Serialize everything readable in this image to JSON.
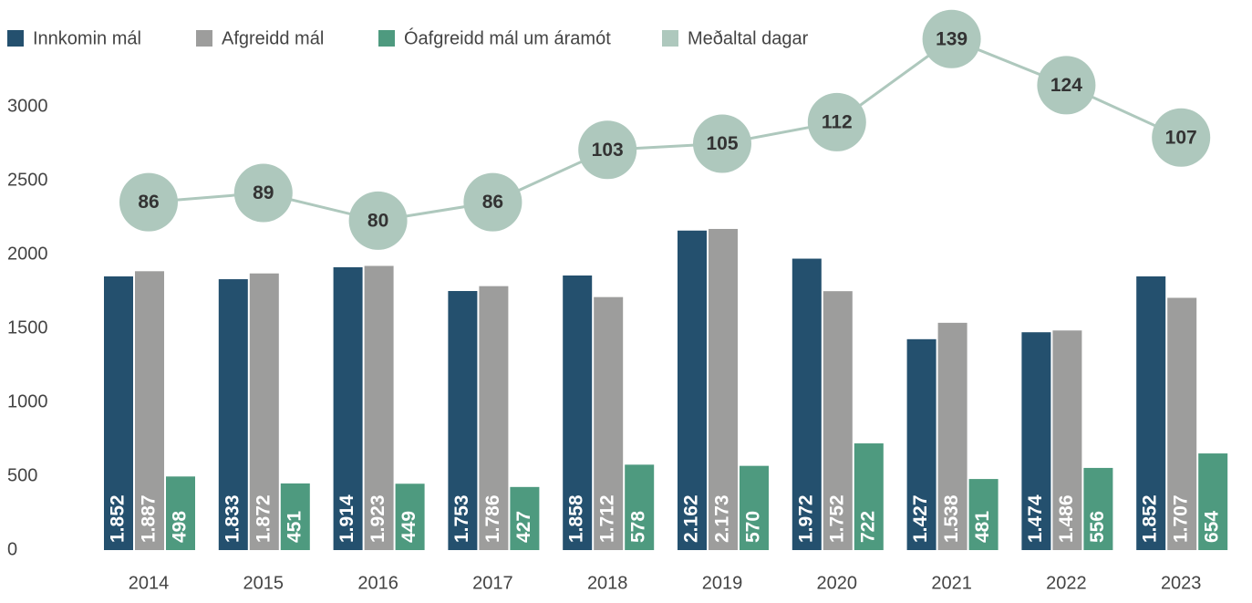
{
  "chart_data": {
    "type": "bar",
    "categories": [
      "2014",
      "2015",
      "2016",
      "2017",
      "2018",
      "2019",
      "2020",
      "2021",
      "2022",
      "2023"
    ],
    "series": [
      {
        "name": "Innkomin mál",
        "color": "#24506e",
        "values": [
          1852,
          1833,
          1914,
          1753,
          1858,
          2162,
          1972,
          1427,
          1474,
          1852
        ],
        "value_labels": [
          "1.852",
          "1.833",
          "1.914",
          "1.753",
          "1.858",
          "2.162",
          "1.972",
          "1.427",
          "1.474",
          "1.852"
        ]
      },
      {
        "name": "Afgreidd mál",
        "color": "#9d9d9c",
        "values": [
          1887,
          1872,
          1923,
          1786,
          1712,
          2173,
          1752,
          1538,
          1486,
          1707
        ],
        "value_labels": [
          "1.887",
          "1.872",
          "1.923",
          "1.786",
          "1.712",
          "2.173",
          "1.752",
          "1.538",
          "1.486",
          "1.707"
        ]
      },
      {
        "name": "Óafgreidd mál um áramót",
        "color": "#4e9a7f",
        "values": [
          498,
          451,
          449,
          427,
          578,
          570,
          722,
          481,
          556,
          654
        ]
      },
      {
        "name": "Meðaltal dagar",
        "color": "#aec8bd",
        "type": "line",
        "axis": "y2",
        "values": [
          86,
          89,
          80,
          86,
          103,
          105,
          112,
          139,
          124,
          107
        ]
      }
    ],
    "ylim": [
      0,
      3000
    ],
    "yticks": [
      0,
      500,
      1000,
      1500,
      2000,
      2500,
      3000
    ],
    "y2lim": [
      -27,
      117
    ],
    "grid": false,
    "legend": "top"
  }
}
